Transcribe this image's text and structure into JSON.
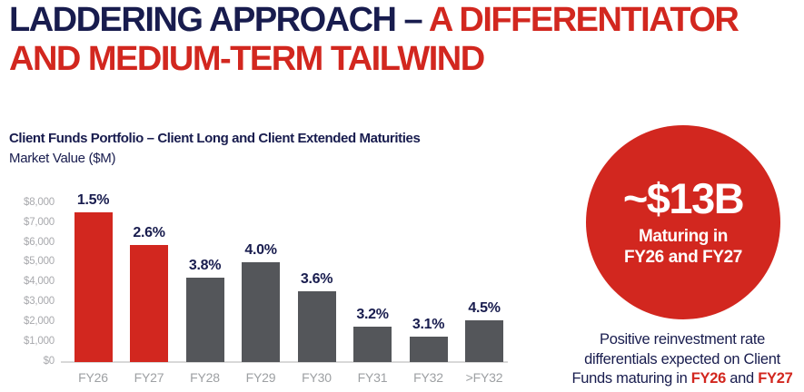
{
  "title": {
    "line1_navy": "LADDERING APPROACH – ",
    "line1_red": "A DIFFERENTIATOR",
    "line2_red": "AND MEDIUM-TERM TAILWIND"
  },
  "chart": {
    "title": "Client Funds Portfolio – Client Long and Client Extended Maturities",
    "subtitle": "Market Value ($M)"
  },
  "chart_data": {
    "type": "bar",
    "title": "Client Funds Portfolio – Client Long and Client Extended Maturities",
    "xlabel": "",
    "ylabel": "Market Value ($M)",
    "categories": [
      "FY26",
      "FY27",
      "FY28",
      "FY29",
      "FY30",
      "FY31",
      "FY32",
      ">FY32"
    ],
    "values": [
      7550,
      5900,
      4250,
      5000,
      3550,
      1800,
      1300,
      2100
    ],
    "bar_labels": [
      "1.5%",
      "2.6%",
      "3.8%",
      "4.0%",
      "3.6%",
      "3.2%",
      "3.1%",
      "4.5%"
    ],
    "bar_colors": [
      "#d2271f",
      "#d2271f",
      "#54565a",
      "#54565a",
      "#54565a",
      "#54565a",
      "#54565a",
      "#54565a"
    ],
    "ylim": [
      0,
      8000
    ],
    "ytick_values": [
      8000,
      7000,
      6000,
      5000,
      4000,
      3000,
      2000,
      1000,
      0
    ],
    "ytick_labels": [
      "$8,000",
      "$7,000",
      "$6,000",
      "$5,000",
      "$4,000",
      "$3,000",
      "$2,000",
      "$1,000",
      "$0"
    ],
    "grid": false,
    "legend": "none"
  },
  "badge": {
    "value": "~$13B",
    "caption_line1": "Maturing in",
    "caption_line2": "FY26 and FY27"
  },
  "footnote": {
    "line1": "Positive reinvestment rate",
    "line2": "differentials expected on Client",
    "line3_prefix": "Funds maturing in ",
    "fy1": "FY26",
    "mid": " and ",
    "fy2": "FY27"
  },
  "colors": {
    "brand_red": "#d2271f",
    "brand_navy": "#181c4e",
    "bar_gray": "#54565a",
    "ytick_gray": "#a8a9ad",
    "xtick_gray": "#9da0a3",
    "baseline_gray": "#d8d8d8"
  }
}
